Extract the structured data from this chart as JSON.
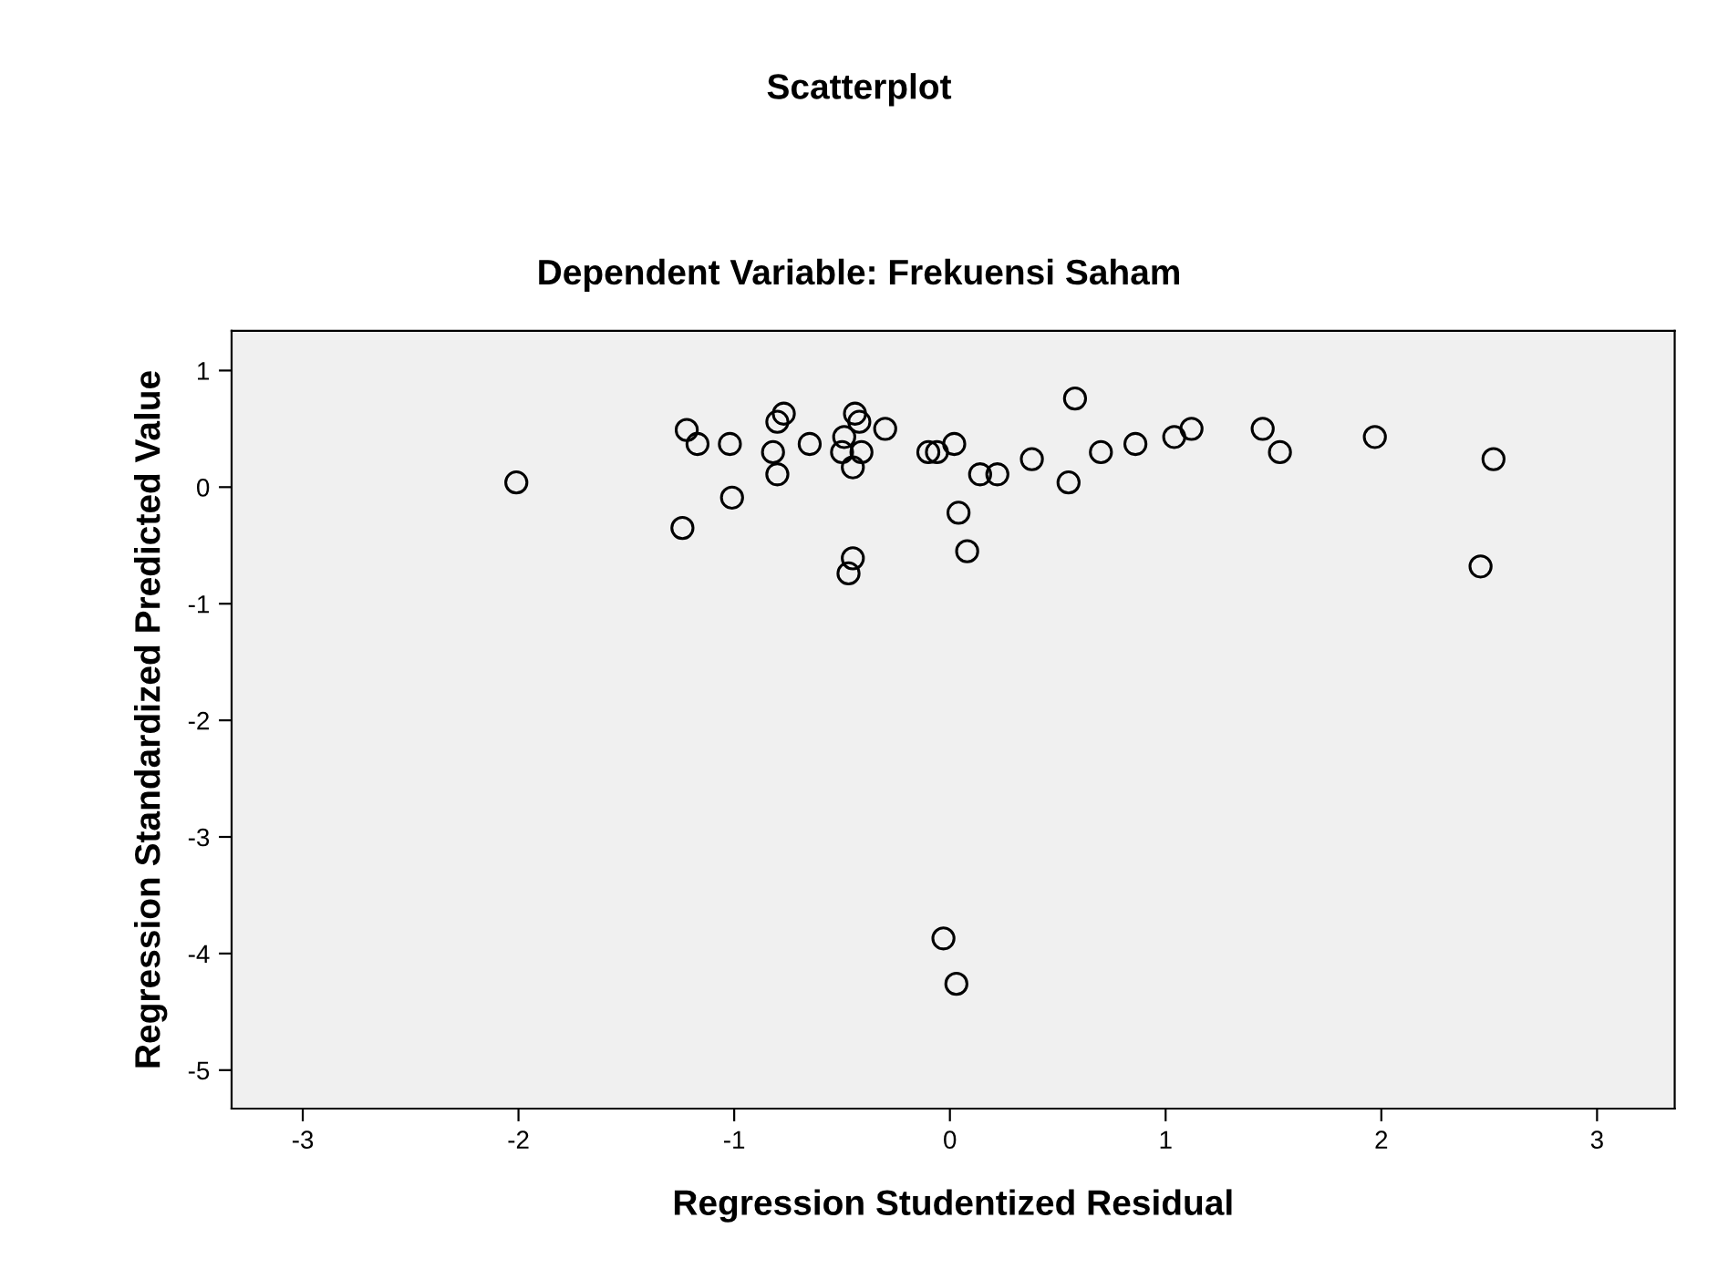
{
  "chart_data": {
    "type": "scatter",
    "title": "Scatterplot",
    "subtitle": "Dependent Variable: Frekuensi Saham",
    "xlabel": "Regression Studentized Residual",
    "ylabel": "Regression Standardized Predicted Value",
    "xlim": [
      -3.33,
      3.36
    ],
    "ylim": [
      -5.33,
      1.34
    ],
    "xticks": [
      -3,
      -2,
      -1,
      0,
      1,
      2,
      3
    ],
    "yticks": [
      -5,
      -4,
      -3,
      -2,
      -1,
      0,
      1
    ],
    "grid": false,
    "marker": "circle",
    "series": [
      {
        "color": "#000000",
        "x": [
          -2.01,
          -1.24,
          -1.22,
          -1.17,
          -1.02,
          -1.01,
          -0.82,
          -0.8,
          -0.77,
          -0.8,
          -0.65,
          -0.49,
          -0.5,
          -0.44,
          -0.42,
          -0.41,
          -0.45,
          -0.45,
          -0.47,
          -0.3,
          -0.1,
          -0.06,
          0.02,
          0.04,
          0.08,
          -0.03,
          0.03,
          0.14,
          0.22,
          0.38,
          0.55,
          0.58,
          0.7,
          0.86,
          1.04,
          1.12,
          1.45,
          1.53,
          1.97,
          2.46,
          2.52
        ],
        "values": [
          0.04,
          -0.35,
          0.49,
          0.37,
          0.37,
          -0.09,
          0.3,
          0.56,
          0.63,
          0.11,
          0.37,
          0.43,
          0.3,
          0.63,
          0.56,
          0.3,
          0.17,
          -0.61,
          -0.74,
          0.5,
          0.3,
          0.3,
          0.37,
          -0.22,
          -0.55,
          -3.87,
          -4.26,
          0.11,
          0.11,
          0.24,
          0.04,
          0.76,
          0.3,
          0.37,
          0.43,
          0.5,
          0.5,
          0.3,
          0.43,
          -0.68,
          0.24
        ]
      }
    ]
  }
}
